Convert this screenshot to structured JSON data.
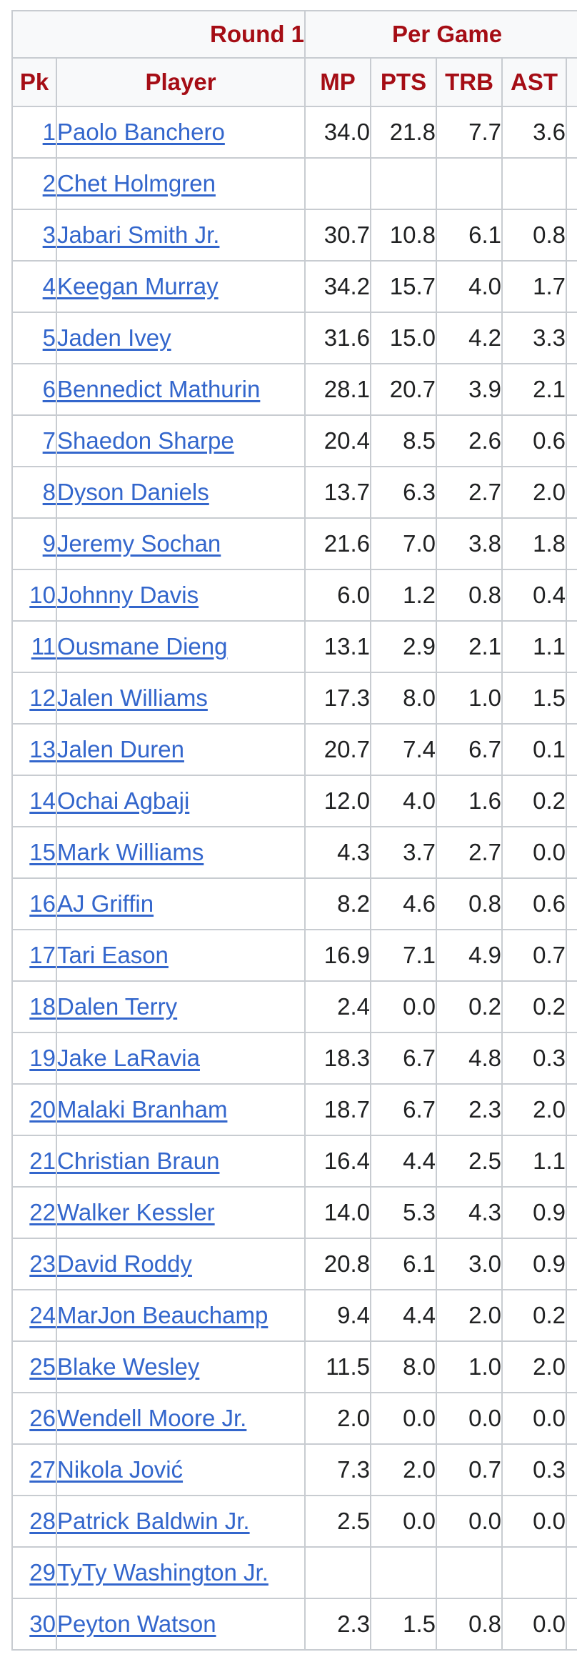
{
  "header": {
    "round_label": "Round 1",
    "per_game_label": "Per Game",
    "columns": {
      "pk": "Pk",
      "player": "Player",
      "mp": "MP",
      "pts": "PTS",
      "trb": "TRB",
      "ast": "AST"
    }
  },
  "rows": [
    {
      "pk": "1",
      "player": "Paolo Banchero",
      "mp": "34.0",
      "pts": "21.8",
      "trb": "7.7",
      "ast": "3.6"
    },
    {
      "pk": "2",
      "player": "Chet Holmgren",
      "mp": "",
      "pts": "",
      "trb": "",
      "ast": ""
    },
    {
      "pk": "3",
      "player": "Jabari Smith Jr.",
      "mp": "30.7",
      "pts": "10.8",
      "trb": "6.1",
      "ast": "0.8"
    },
    {
      "pk": "4",
      "player": "Keegan Murray",
      "mp": "34.2",
      "pts": "15.7",
      "trb": "4.0",
      "ast": "1.7"
    },
    {
      "pk": "5",
      "player": "Jaden Ivey",
      "mp": "31.6",
      "pts": "15.0",
      "trb": "4.2",
      "ast": "3.3"
    },
    {
      "pk": "6",
      "player": "Bennedict Mathurin",
      "mp": "28.1",
      "pts": "20.7",
      "trb": "3.9",
      "ast": "2.1"
    },
    {
      "pk": "7",
      "player": "Shaedon Sharpe",
      "mp": "20.4",
      "pts": "8.5",
      "trb": "2.6",
      "ast": "0.6"
    },
    {
      "pk": "8",
      "player": "Dyson Daniels",
      "mp": "13.7",
      "pts": "6.3",
      "trb": "2.7",
      "ast": "2.0"
    },
    {
      "pk": "9",
      "player": "Jeremy Sochan",
      "mp": "21.6",
      "pts": "7.0",
      "trb": "3.8",
      "ast": "1.8"
    },
    {
      "pk": "10",
      "player": "Johnny Davis",
      "mp": "6.0",
      "pts": "1.2",
      "trb": "0.8",
      "ast": "0.4"
    },
    {
      "pk": "11",
      "player": "Ousmane Dieng",
      "mp": "13.1",
      "pts": "2.9",
      "trb": "2.1",
      "ast": "1.1"
    },
    {
      "pk": "12",
      "player": "Jalen Williams",
      "mp": "17.3",
      "pts": "8.0",
      "trb": "1.0",
      "ast": "1.5"
    },
    {
      "pk": "13",
      "player": "Jalen Duren",
      "mp": "20.7",
      "pts": "7.4",
      "trb": "6.7",
      "ast": "0.1"
    },
    {
      "pk": "14",
      "player": "Ochai Agbaji",
      "mp": "12.0",
      "pts": "4.0",
      "trb": "1.6",
      "ast": "0.2"
    },
    {
      "pk": "15",
      "player": "Mark Williams",
      "mp": "4.3",
      "pts": "3.7",
      "trb": "2.7",
      "ast": "0.0"
    },
    {
      "pk": "16",
      "player": "AJ Griffin",
      "mp": "8.2",
      "pts": "4.6",
      "trb": "0.8",
      "ast": "0.6"
    },
    {
      "pk": "17",
      "player": "Tari Eason",
      "mp": "16.9",
      "pts": "7.1",
      "trb": "4.9",
      "ast": "0.7"
    },
    {
      "pk": "18",
      "player": "Dalen Terry",
      "mp": "2.4",
      "pts": "0.0",
      "trb": "0.2",
      "ast": "0.2"
    },
    {
      "pk": "19",
      "player": "Jake LaRavia",
      "mp": "18.3",
      "pts": "6.7",
      "trb": "4.8",
      "ast": "0.3"
    },
    {
      "pk": "20",
      "player": "Malaki Branham",
      "mp": "18.7",
      "pts": "6.7",
      "trb": "2.3",
      "ast": "2.0"
    },
    {
      "pk": "21",
      "player": "Christian Braun",
      "mp": "16.4",
      "pts": "4.4",
      "trb": "2.5",
      "ast": "1.1"
    },
    {
      "pk": "22",
      "player": "Walker Kessler",
      "mp": "14.0",
      "pts": "5.3",
      "trb": "4.3",
      "ast": "0.9"
    },
    {
      "pk": "23",
      "player": "David Roddy",
      "mp": "20.8",
      "pts": "6.1",
      "trb": "3.0",
      "ast": "0.9"
    },
    {
      "pk": "24",
      "player": "MarJon Beauchamp",
      "mp": "9.4",
      "pts": "4.4",
      "trb": "2.0",
      "ast": "0.2"
    },
    {
      "pk": "25",
      "player": "Blake Wesley",
      "mp": "11.5",
      "pts": "8.0",
      "trb": "1.0",
      "ast": "2.0"
    },
    {
      "pk": "26",
      "player": "Wendell Moore Jr.",
      "mp": "2.0",
      "pts": "0.0",
      "trb": "0.0",
      "ast": "0.0"
    },
    {
      "pk": "27",
      "player": "Nikola Jović",
      "mp": "7.3",
      "pts": "2.0",
      "trb": "0.7",
      "ast": "0.3"
    },
    {
      "pk": "28",
      "player": "Patrick Baldwin Jr.",
      "mp": "2.5",
      "pts": "0.0",
      "trb": "0.0",
      "ast": "0.0"
    },
    {
      "pk": "29",
      "player": "TyTy Washington Jr.",
      "mp": "",
      "pts": "",
      "trb": "",
      "ast": ""
    },
    {
      "pk": "30",
      "player": "Peyton Watson",
      "mp": "2.3",
      "pts": "1.5",
      "trb": "0.8",
      "ast": "0.0"
    }
  ]
}
